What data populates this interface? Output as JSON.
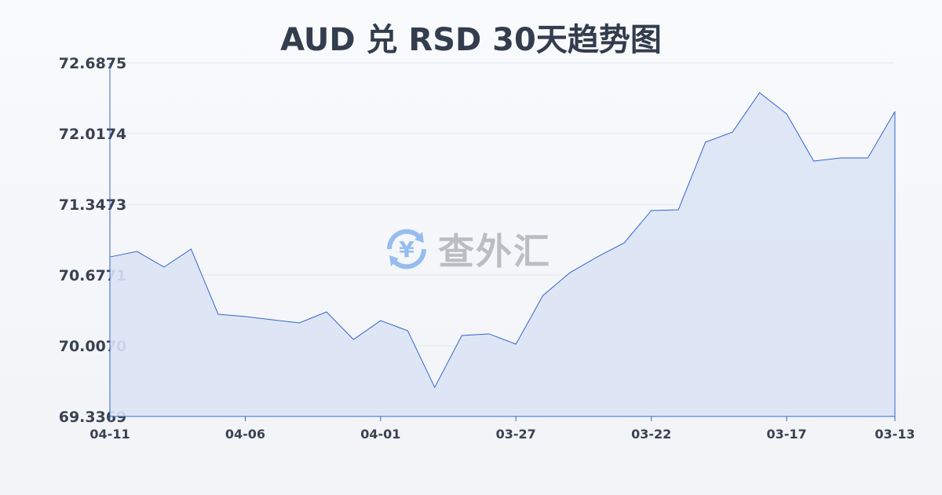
{
  "chart_data": {
    "type": "area",
    "title": "AUD 兑 RSD 30天趋势图",
    "xlabel": "",
    "ylabel": "",
    "ylim": [
      69.3369,
      72.6875
    ],
    "yticks": [
      "72.6875",
      "72.0174",
      "71.3473",
      "70.6771",
      "70.0070",
      "69.3369"
    ],
    "xticks": [
      "04-11",
      "04-06",
      "04-01",
      "03-27",
      "03-22",
      "03-17",
      "03-13"
    ],
    "grid": true,
    "colors": {
      "line": "#3366cc",
      "fill": "#dbe4f5"
    },
    "x": [
      "04-11",
      "04-10",
      "04-09",
      "04-08",
      "04-07",
      "04-06",
      "04-05",
      "04-04",
      "04-03",
      "04-02",
      "04-01",
      "03-31",
      "03-30",
      "03-29",
      "03-28",
      "03-27",
      "03-26",
      "03-25",
      "03-24",
      "03-23",
      "03-22",
      "03-21",
      "03-20",
      "03-19",
      "03-18",
      "03-17",
      "03-16",
      "03-15",
      "03-14",
      "03-13"
    ],
    "values": [
      70.848,
      70.9,
      70.752,
      70.923,
      70.305,
      70.283,
      70.253,
      70.223,
      70.327,
      70.066,
      70.245,
      70.149,
      69.612,
      70.104,
      70.119,
      70.022,
      70.484,
      70.7,
      70.848,
      70.982,
      71.288,
      71.295,
      71.935,
      72.032,
      72.405,
      72.204,
      71.757,
      71.787,
      71.787,
      72.226
    ]
  },
  "watermark": {
    "text": "查外汇",
    "icon": "yen-exchange-icon"
  }
}
